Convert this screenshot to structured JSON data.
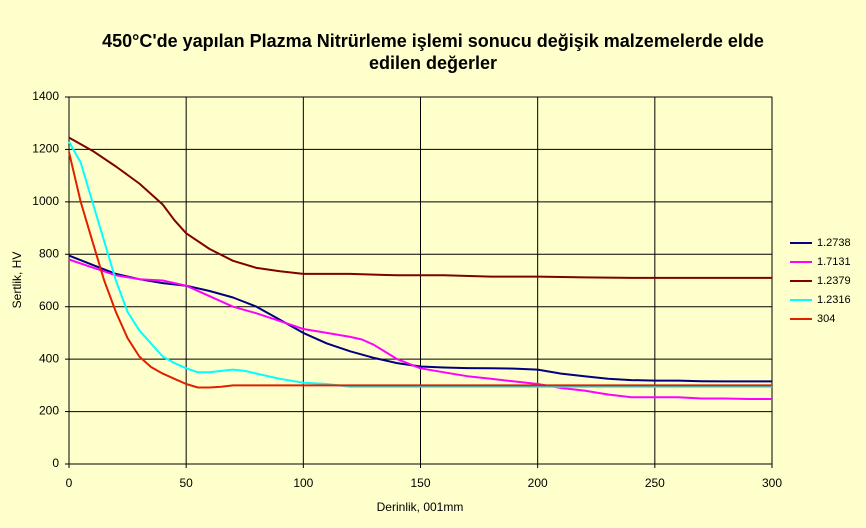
{
  "chart_data": {
    "type": "line",
    "title": [
      "450°C'de yapılan Plazma Nitrürleme işlemi sonucu değişik malzemelerde elde",
      "edilen değerler"
    ],
    "x_label": "Derinlik, 001mm",
    "y_label": "Sertlik, HV",
    "xlim": [
      0,
      300
    ],
    "xticks": [
      0,
      50,
      100,
      150,
      200,
      250,
      300
    ],
    "ylim": [
      0,
      1400
    ],
    "yticks": [
      0,
      200,
      400,
      600,
      800,
      1000,
      1200,
      1400
    ],
    "grid": true,
    "legend": "right",
    "series": [
      {
        "name": "1.2738",
        "color": "#000080",
        "x": [
          0,
          10,
          20,
          30,
          40,
          50,
          60,
          70,
          80,
          90,
          100,
          110,
          120,
          130,
          140,
          150,
          160,
          170,
          180,
          190,
          200,
          210,
          220,
          230,
          240,
          250,
          260,
          270,
          280,
          290,
          300
        ],
        "values": [
          795,
          760,
          725,
          705,
          690,
          680,
          660,
          635,
          600,
          550,
          500,
          460,
          430,
          405,
          385,
          372,
          368,
          366,
          365,
          364,
          360,
          345,
          335,
          325,
          320,
          318,
          318,
          316,
          315,
          315,
          315
        ]
      },
      {
        "name": "1.7131",
        "color": "#ff00ff",
        "x": [
          0,
          10,
          20,
          30,
          40,
          50,
          60,
          70,
          80,
          90,
          100,
          110,
          120,
          125,
          130,
          140,
          150,
          160,
          170,
          180,
          190,
          200,
          210,
          220,
          230,
          240,
          250,
          260,
          270,
          280,
          290,
          300
        ],
        "values": [
          780,
          750,
          720,
          705,
          700,
          680,
          640,
          600,
          575,
          545,
          515,
          500,
          485,
          475,
          455,
          400,
          365,
          350,
          335,
          325,
          315,
          305,
          290,
          280,
          265,
          255,
          255,
          255,
          250,
          250,
          248,
          248
        ]
      },
      {
        "name": "1.2379",
        "color": "#800000",
        "x": [
          0,
          10,
          20,
          30,
          40,
          45,
          50,
          60,
          70,
          80,
          90,
          100,
          120,
          140,
          160,
          180,
          200,
          220,
          240,
          260,
          280,
          300
        ],
        "values": [
          1245,
          1195,
          1135,
          1070,
          990,
          930,
          880,
          820,
          775,
          748,
          735,
          725,
          725,
          720,
          720,
          715,
          715,
          712,
          710,
          710,
          710,
          710
        ]
      },
      {
        "name": "1.2316",
        "color": "#00ffff",
        "x": [
          0,
          5,
          10,
          15,
          20,
          25,
          30,
          35,
          40,
          45,
          50,
          55,
          60,
          65,
          70,
          75,
          80,
          90,
          100,
          110,
          120,
          140,
          160,
          180,
          200,
          220,
          240,
          260,
          280,
          300
        ],
        "values": [
          1230,
          1150,
          1000,
          850,
          700,
          580,
          510,
          460,
          410,
          385,
          365,
          350,
          350,
          355,
          360,
          355,
          345,
          325,
          310,
          305,
          295,
          295,
          295,
          295,
          295,
          295,
          295,
          295,
          295,
          295
        ]
      },
      {
        "name": "304",
        "color": "#e02000",
        "x": [
          0,
          5,
          10,
          15,
          20,
          25,
          30,
          35,
          40,
          45,
          50,
          55,
          60,
          65,
          70,
          80,
          90,
          100,
          150,
          200,
          250,
          300
        ],
        "values": [
          1190,
          1000,
          850,
          700,
          580,
          480,
          410,
          370,
          345,
          325,
          305,
          292,
          292,
          295,
          300,
          300,
          300,
          300,
          300,
          300,
          300,
          300
        ]
      }
    ]
  }
}
